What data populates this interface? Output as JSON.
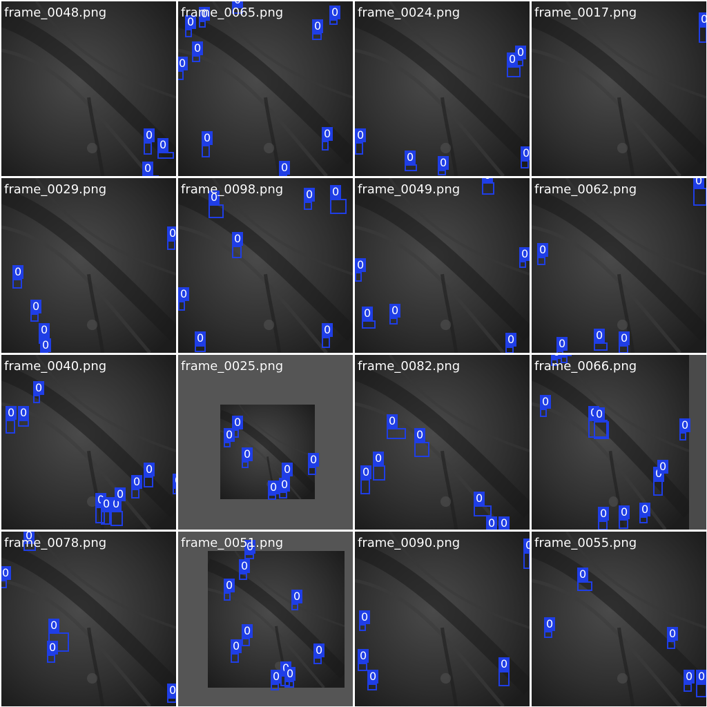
{
  "detection_color": "#1f3ee6",
  "tiles": [
    {
      "filename": "frame_0048.png",
      "class_label": "0"
    },
    {
      "filename": "frame_0065.png",
      "class_label": "0"
    },
    {
      "filename": "frame_0024.png",
      "class_label": "0"
    },
    {
      "filename": "frame_0017.png",
      "class_label": "0"
    },
    {
      "filename": "frame_0029.png",
      "class_label": "0"
    },
    {
      "filename": "frame_0098.png",
      "class_label": "0"
    },
    {
      "filename": "frame_0049.png",
      "class_label": "0"
    },
    {
      "filename": "frame_0062.png",
      "class_label": "0"
    },
    {
      "filename": "frame_0040.png",
      "class_label": "0"
    },
    {
      "filename": "frame_0025.png",
      "class_label": "0"
    },
    {
      "filename": "frame_0082.png",
      "class_label": "0"
    },
    {
      "filename": "frame_0066.png",
      "class_label": "0"
    },
    {
      "filename": "frame_0078.png",
      "class_label": "0"
    },
    {
      "filename": "frame_0051.png",
      "class_label": "0"
    },
    {
      "filename": "frame_0090.png",
      "class_label": "0"
    },
    {
      "filename": "frame_0055.png",
      "class_label": "0"
    }
  ]
}
